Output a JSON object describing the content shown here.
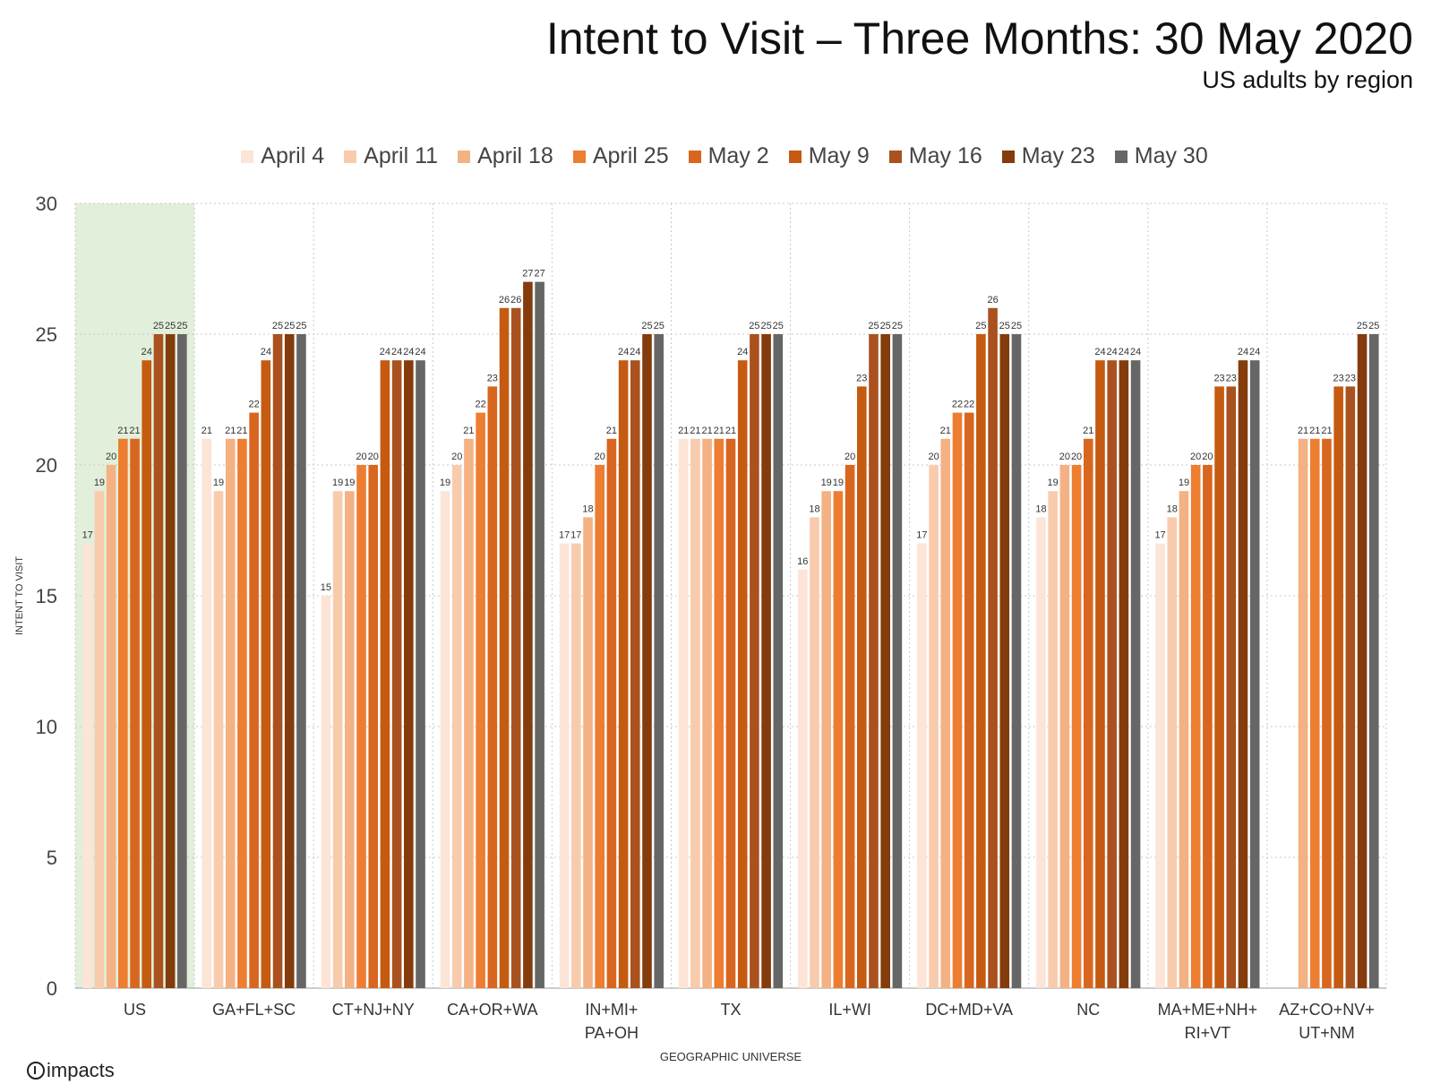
{
  "title": "Intent to Visit – Three Months: 30 May 2020",
  "subtitle": "US adults by region",
  "logo_text": "impacts",
  "colors": {
    "highlight": "#e2efda",
    "grid": "#c8c8c8",
    "label": "#333333"
  },
  "chart_data": {
    "type": "bar",
    "title": "Intent to Visit – Three Months: 30 May 2020",
    "subtitle": "US adults by region",
    "xlabel": "GEOGRAPHIC UNIVERSE",
    "ylabel": "INTENT TO VISIT",
    "ylim": [
      0,
      30
    ],
    "yticks": [
      0,
      5,
      10,
      15,
      20,
      25,
      30
    ],
    "grid": true,
    "legend_position": "top",
    "highlighted_category": "US",
    "categories": [
      [
        "US"
      ],
      [
        "GA+FL+SC"
      ],
      [
        "CT+NJ+NY"
      ],
      [
        "CA+OR+WA"
      ],
      [
        "IN+MI+",
        "PA+OH"
      ],
      [
        "TX"
      ],
      [
        "IL+WI"
      ],
      [
        "DC+MD+VA"
      ],
      [
        "NC"
      ],
      [
        "MA+ME+NH+",
        "RI+VT"
      ],
      [
        "AZ+CO+NV+",
        "UT+NM"
      ]
    ],
    "series": [
      {
        "name": "April 4",
        "color": "#fce4d6",
        "values": [
          17,
          21,
          15,
          19,
          17,
          21,
          16,
          17,
          18,
          17,
          null
        ]
      },
      {
        "name": "April 11",
        "color": "#f8cbad",
        "values": [
          19,
          19,
          19,
          20,
          17,
          21,
          18,
          20,
          19,
          18,
          null
        ]
      },
      {
        "name": "April 18",
        "color": "#f4b183",
        "values": [
          20,
          21,
          19,
          21,
          18,
          21,
          19,
          21,
          20,
          19,
          21
        ]
      },
      {
        "name": "April 25",
        "color": "#ed7d31",
        "values": [
          21,
          21,
          20,
          22,
          20,
          21,
          19,
          22,
          20,
          20,
          21
        ]
      },
      {
        "name": "May 2",
        "color": "#d9661f",
        "values": [
          21,
          22,
          20,
          23,
          21,
          21,
          20,
          22,
          21,
          20,
          21
        ]
      },
      {
        "name": "May 9",
        "color": "#c55a11",
        "values": [
          24,
          24,
          24,
          26,
          24,
          24,
          23,
          25,
          24,
          23,
          23
        ]
      },
      {
        "name": "May 16",
        "color": "#a9521f",
        "values": [
          25,
          25,
          24,
          26,
          24,
          25,
          25,
          26,
          24,
          23,
          23
        ]
      },
      {
        "name": "May 23",
        "color": "#843c0c",
        "values": [
          25,
          25,
          24,
          27,
          25,
          25,
          25,
          25,
          24,
          24,
          25
        ]
      },
      {
        "name": "May 30",
        "color": "#666666",
        "values": [
          25,
          25,
          24,
          27,
          25,
          25,
          25,
          25,
          24,
          24,
          25
        ]
      }
    ]
  }
}
